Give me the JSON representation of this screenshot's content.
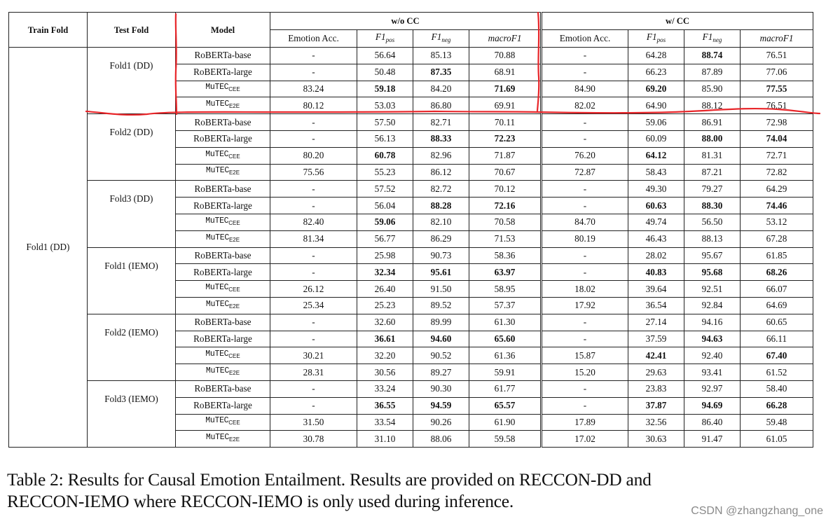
{
  "table": {
    "headers": {
      "train_fold": "Train Fold",
      "test_fold": "Test Fold",
      "model": "Model",
      "groups": [
        {
          "label": "w/o CC",
          "columns": [
            "Emotion Acc.",
            "F1_pos",
            "F1_neg",
            "macroF1"
          ]
        },
        {
          "label": "w/ CC",
          "columns": [
            "Emotion Acc.",
            "F1_pos",
            "F1_neg",
            "macroF1"
          ]
        }
      ],
      "col_parts": {
        "emotion_acc": "Emotion Acc.",
        "f1": "F1",
        "pos": "pos",
        "neg": "neg",
        "macro": "macroF1"
      }
    },
    "train_fold": "Fold1 (DD)",
    "test_folds": [
      {
        "label": "Fold1 (DD)",
        "rows": [
          {
            "model": "RoBERTa-base",
            "model_sub": "",
            "vals": [
              "-",
              "56.64",
              "85.13",
              "70.88",
              "-",
              "64.28",
              "88.74",
              "76.51"
            ],
            "bold": [
              0,
              0,
              0,
              0,
              0,
              0,
              1,
              0
            ]
          },
          {
            "model": "RoBERTa-large",
            "model_sub": "",
            "vals": [
              "-",
              "50.48",
              "87.35",
              "68.91",
              "-",
              "66.23",
              "87.89",
              "77.06"
            ],
            "bold": [
              0,
              0,
              1,
              0,
              0,
              0,
              0,
              0
            ]
          },
          {
            "model": "MuTEC",
            "model_sub": "CEE",
            "vals": [
              "83.24",
              "59.18",
              "84.20",
              "71.69",
              "84.90",
              "69.20",
              "85.90",
              "77.55"
            ],
            "bold": [
              0,
              1,
              0,
              1,
              0,
              1,
              0,
              1
            ]
          },
          {
            "model": "MuTEC",
            "model_sub": "E2E",
            "vals": [
              "80.12",
              "53.03",
              "86.80",
              "69.91",
              "82.02",
              "64.90",
              "88.12",
              "76.51"
            ],
            "bold": [
              0,
              0,
              0,
              0,
              0,
              0,
              0,
              0
            ]
          }
        ]
      },
      {
        "label": "Fold2 (DD)",
        "rows": [
          {
            "model": "RoBERTa-base",
            "model_sub": "",
            "vals": [
              "-",
              "57.50",
              "82.71",
              "70.11",
              "-",
              "59.06",
              "86.91",
              "72.98"
            ],
            "bold": [
              0,
              0,
              0,
              0,
              0,
              0,
              0,
              0
            ]
          },
          {
            "model": "RoBERTa-large",
            "model_sub": "",
            "vals": [
              "-",
              "56.13",
              "88.33",
              "72.23",
              "-",
              "60.09",
              "88.00",
              "74.04"
            ],
            "bold": [
              0,
              0,
              1,
              1,
              0,
              0,
              1,
              1
            ]
          },
          {
            "model": "MuTEC",
            "model_sub": "CEE",
            "vals": [
              "80.20",
              "60.78",
              "82.96",
              "71.87",
              "76.20",
              "64.12",
              "81.31",
              "72.71"
            ],
            "bold": [
              0,
              1,
              0,
              0,
              0,
              1,
              0,
              0
            ]
          },
          {
            "model": "MuTEC",
            "model_sub": "E2E",
            "vals": [
              "75.56",
              "55.23",
              "86.12",
              "70.67",
              "72.87",
              "58.43",
              "87.21",
              "72.82"
            ],
            "bold": [
              0,
              0,
              0,
              0,
              0,
              0,
              0,
              0
            ]
          }
        ]
      },
      {
        "label": "Fold3 (DD)",
        "rows": [
          {
            "model": "RoBERTa-base",
            "model_sub": "",
            "vals": [
              "-",
              "57.52",
              "82.72",
              "70.12",
              "-",
              "49.30",
              "79.27",
              "64.29"
            ],
            "bold": [
              0,
              0,
              0,
              0,
              0,
              0,
              0,
              0
            ]
          },
          {
            "model": "RoBERTa-large",
            "model_sub": "",
            "vals": [
              "-",
              "56.04",
              "88.28",
              "72.16",
              "-",
              "60.63",
              "88.30",
              "74.46"
            ],
            "bold": [
              0,
              0,
              1,
              1,
              0,
              1,
              1,
              1
            ]
          },
          {
            "model": "MuTEC",
            "model_sub": "CEE",
            "vals": [
              "82.40",
              "59.06",
              "82.10",
              "70.58",
              "84.70",
              "49.74",
              "56.50",
              "53.12"
            ],
            "bold": [
              0,
              1,
              0,
              0,
              0,
              0,
              0,
              0
            ]
          },
          {
            "model": "MuTEC",
            "model_sub": "E2E",
            "vals": [
              "81.34",
              "56.77",
              "86.29",
              "71.53",
              "80.19",
              "46.43",
              "88.13",
              "67.28"
            ],
            "bold": [
              0,
              0,
              0,
              0,
              0,
              0,
              0,
              0
            ]
          }
        ]
      },
      {
        "label": "Fold1 (IEMO)",
        "rows": [
          {
            "model": "RoBERTa-base",
            "model_sub": "",
            "vals": [
              "-",
              "25.98",
              "90.73",
              "58.36",
              "-",
              "28.02",
              "95.67",
              "61.85"
            ],
            "bold": [
              0,
              0,
              0,
              0,
              0,
              0,
              0,
              0
            ]
          },
          {
            "model": "RoBERTa-large",
            "model_sub": "",
            "vals": [
              "-",
              "32.34",
              "95.61",
              "63.97",
              "-",
              "40.83",
              "95.68",
              "68.26"
            ],
            "bold": [
              0,
              1,
              1,
              1,
              0,
              1,
              1,
              1
            ]
          },
          {
            "model": "MuTEC",
            "model_sub": "CEE",
            "vals": [
              "26.12",
              "26.40",
              "91.50",
              "58.95",
              "18.02",
              "39.64",
              "92.51",
              "66.07"
            ],
            "bold": [
              0,
              0,
              0,
              0,
              0,
              0,
              0,
              0
            ]
          },
          {
            "model": "MuTEC",
            "model_sub": "E2E",
            "vals": [
              "25.34",
              "25.23",
              "89.52",
              "57.37",
              "17.92",
              "36.54",
              "92.84",
              "64.69"
            ],
            "bold": [
              0,
              0,
              0,
              0,
              0,
              0,
              0,
              0
            ]
          }
        ]
      },
      {
        "label": "Fold2 (IEMO)",
        "rows": [
          {
            "model": "RoBERTa-base",
            "model_sub": "",
            "vals": [
              "-",
              "32.60",
              "89.99",
              "61.30",
              "-",
              "27.14",
              "94.16",
              "60.65"
            ],
            "bold": [
              0,
              0,
              0,
              0,
              0,
              0,
              0,
              0
            ]
          },
          {
            "model": "RoBERTa-large",
            "model_sub": "",
            "vals": [
              "-",
              "36.61",
              "94.60",
              "65.60",
              "-",
              "37.59",
              "94.63",
              "66.11"
            ],
            "bold": [
              0,
              1,
              1,
              1,
              0,
              0,
              1,
              0
            ]
          },
          {
            "model": "MuTEC",
            "model_sub": "CEE",
            "vals": [
              "30.21",
              "32.20",
              "90.52",
              "61.36",
              "15.87",
              "42.41",
              "92.40",
              "67.40"
            ],
            "bold": [
              0,
              0,
              0,
              0,
              0,
              1,
              0,
              1
            ]
          },
          {
            "model": "MuTEC",
            "model_sub": "E2E",
            "vals": [
              "28.31",
              "30.56",
              "89.27",
              "59.91",
              "15.20",
              "29.63",
              "93.41",
              "61.52"
            ],
            "bold": [
              0,
              0,
              0,
              0,
              0,
              0,
              0,
              0
            ]
          }
        ]
      },
      {
        "label": "Fold3 (IEMO)",
        "rows": [
          {
            "model": "RoBERTa-base",
            "model_sub": "",
            "vals": [
              "-",
              "33.24",
              "90.30",
              "61.77",
              "-",
              "23.83",
              "92.97",
              "58.40"
            ],
            "bold": [
              0,
              0,
              0,
              0,
              0,
              0,
              0,
              0
            ]
          },
          {
            "model": "RoBERTa-large",
            "model_sub": "",
            "vals": [
              "-",
              "36.55",
              "94.59",
              "65.57",
              "-",
              "37.87",
              "94.69",
              "66.28"
            ],
            "bold": [
              0,
              1,
              1,
              1,
              0,
              1,
              1,
              1
            ]
          },
          {
            "model": "MuTEC",
            "model_sub": "CEE",
            "vals": [
              "31.50",
              "33.54",
              "90.26",
              "61.90",
              "17.89",
              "32.56",
              "86.40",
              "59.48"
            ],
            "bold": [
              0,
              0,
              0,
              0,
              0,
              0,
              0,
              0
            ]
          },
          {
            "model": "MuTEC",
            "model_sub": "E2E",
            "vals": [
              "30.78",
              "31.10",
              "88.06",
              "59.58",
              "17.02",
              "30.63",
              "91.47",
              "61.05"
            ],
            "bold": [
              0,
              0,
              0,
              0,
              0,
              0,
              0,
              0
            ]
          }
        ]
      }
    ]
  },
  "caption": {
    "line1": "Table 2:  Results for Causal Emotion Entailment.  Results are provided on RECCON-DD and",
    "line2": "RECCON-IEMO where RECCON-IEMO is only used during inference."
  },
  "watermark": "CSDN @zhangzhang_one",
  "annotation": {
    "color": "#e8262a"
  }
}
